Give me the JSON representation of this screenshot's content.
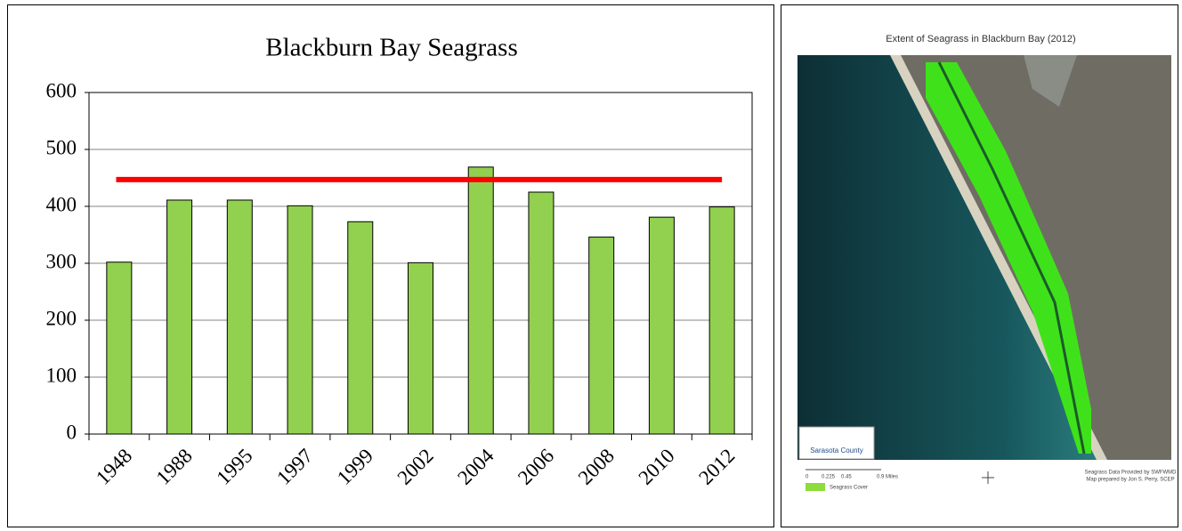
{
  "chart_data": {
    "type": "bar",
    "title": "Blackburn Bay Seagrass",
    "categories": [
      "1948",
      "1988",
      "1995",
      "1997",
      "1999",
      "2002",
      "2004",
      "2006",
      "2008",
      "2010",
      "2012"
    ],
    "values": [
      302,
      411,
      411,
      401,
      373,
      301,
      469,
      425,
      346,
      381,
      399
    ],
    "color": "#92d050",
    "ylim": [
      0,
      600
    ],
    "yticks": [
      0,
      100,
      200,
      300,
      400,
      500,
      600
    ],
    "grid": true,
    "reference_line": {
      "value": 447,
      "color": "#ff0000"
    }
  },
  "map": {
    "title": "Extent of Seagrass in Blackburn Bay (2012)",
    "logo": "Sarasota County",
    "scale": [
      "0",
      "0.225",
      "0.45",
      "0.9 Miles"
    ],
    "legend": "Seagrass Cover",
    "credits": [
      "Seagrass Data Provided by SWFWMD",
      "Map prepared by Jon S. Perry, SCEP"
    ]
  }
}
